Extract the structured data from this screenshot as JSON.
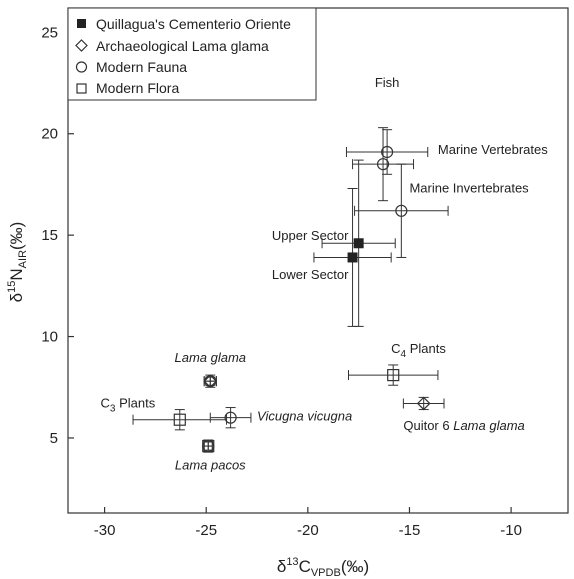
{
  "chart_data": {
    "type": "scatter",
    "x_axis": {
      "min": -31.8,
      "max": -7.2,
      "ticks": [
        -30,
        -25,
        -20,
        -15,
        -10
      ],
      "label_main": "δ",
      "label_sup": "13",
      "label_base": "C",
      "label_sub": "VPDB",
      "label_unit": "(‰)"
    },
    "y_axis": {
      "min": 1.3,
      "max": 26.2,
      "ticks": [
        5,
        10,
        15,
        20,
        25
      ],
      "label_main": "δ",
      "label_sup": "15",
      "label_base": "N",
      "label_sub": "AIR",
      "label_unit": "(‰)"
    },
    "grid": false,
    "legend": {
      "position": "top-left",
      "entries": [
        {
          "marker": "filled-square",
          "text": "Quillagua's Cementerio Oriente"
        },
        {
          "marker": "diamond",
          "text": "Archaeological Lama glama"
        },
        {
          "marker": "circle",
          "text": "Modern Fauna"
        },
        {
          "marker": "square",
          "text": "Modern Flora"
        }
      ]
    },
    "points": [
      {
        "marker": "filled-square",
        "x": -17.5,
        "y": 14.6,
        "xerr": 1.8,
        "yerr": 4.1
      },
      {
        "marker": "filled-square",
        "x": -17.8,
        "y": 13.9,
        "xerr": 1.9,
        "yerr": 3.4
      },
      {
        "marker": "circle",
        "x": -16.1,
        "y": 19.1,
        "xerr": 2.0,
        "yerr": 1.1
      },
      {
        "marker": "circle",
        "x": -16.3,
        "y": 18.5,
        "xerr": 1.5,
        "yerr": 1.8
      },
      {
        "marker": "circle",
        "x": -15.4,
        "y": 16.2,
        "xerr": 2.3,
        "yerr": 2.3
      },
      {
        "marker": "circle",
        "x": -24.8,
        "y": 7.8,
        "xerr": 0.3,
        "yerr": 0.3
      },
      {
        "marker": "circle",
        "x": -23.8,
        "y": 6.0,
        "xerr": 1.0,
        "yerr": 0.5
      },
      {
        "marker": "circle",
        "x": -24.9,
        "y": 4.6,
        "xerr": 0.2,
        "yerr": 0.3
      },
      {
        "marker": "diamond",
        "x": -24.8,
        "y": 7.8,
        "xerr": 0.3,
        "yerr": 0.2
      },
      {
        "marker": "diamond",
        "x": -14.3,
        "y": 6.7,
        "xerr": 1.0,
        "yerr": 0.3
      },
      {
        "marker": "square",
        "x": -26.3,
        "y": 5.9,
        "xerr": 2.3,
        "yerr": 0.5
      },
      {
        "marker": "square",
        "x": -15.8,
        "y": 8.1,
        "xerr": 2.2,
        "yerr": 0.5
      },
      {
        "marker": "square",
        "x": -24.9,
        "y": 4.6,
        "xerr": 0.2,
        "yerr": 0.2
      }
    ],
    "annotations": [
      {
        "text": "Fish",
        "x": -16.1,
        "y": 22.3,
        "anchor": "middle",
        "italic": false
      },
      {
        "text": "Marine Vertebrates",
        "x": -13.6,
        "y": 19.0,
        "anchor": "start",
        "italic": false
      },
      {
        "text": "Marine Invertebrates",
        "x": -15.0,
        "y": 17.1,
        "anchor": "start",
        "italic": false
      },
      {
        "text": "Upper Sector",
        "x": -18.0,
        "y": 14.75,
        "anchor": "end",
        "italic": false
      },
      {
        "text": "Lower Sector",
        "x": -18.0,
        "y": 12.85,
        "anchor": "end",
        "italic": false
      },
      {
        "text": "Lama glama",
        "x": -24.8,
        "y": 8.75,
        "anchor": "middle",
        "italic": true
      },
      {
        "text": "Vicugna vicugna",
        "x": -22.5,
        "y": 5.85,
        "anchor": "start",
        "italic": true
      },
      {
        "text": "Lama pacos",
        "x": -24.8,
        "y": 3.45,
        "anchor": "middle",
        "italic": true
      },
      {
        "text": "Quitor 6 ",
        "italic_text": "Lama glama",
        "x": -15.3,
        "y": 5.4,
        "anchor": "start",
        "italic": false
      },
      {
        "text": "C",
        "sub": "4",
        "rest": " Plants",
        "x": -15.9,
        "y": 9.2,
        "anchor": "start",
        "italic": false
      },
      {
        "text": "C",
        "sub": "3",
        "rest": " Plants",
        "x": -30.2,
        "y": 6.5,
        "anchor": "start",
        "italic": false
      }
    ]
  }
}
